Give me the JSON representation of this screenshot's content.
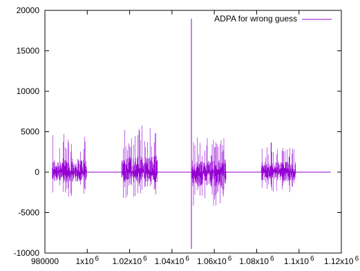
{
  "chart_data": {
    "type": "line",
    "title": "",
    "xlabel": "",
    "ylabel": "",
    "xlim": [
      980000,
      1120000
    ],
    "ylim": [
      -10000,
      20000
    ],
    "grid": false,
    "legend_position": "top-right",
    "x_ticks": [
      {
        "value": 980000,
        "base": "980000",
        "exp": ""
      },
      {
        "value": 1000000,
        "base": "1x10",
        "exp": "6"
      },
      {
        "value": 1020000,
        "base": "1.02x10",
        "exp": "6"
      },
      {
        "value": 1040000,
        "base": "1.04x10",
        "exp": "6"
      },
      {
        "value": 1060000,
        "base": "1.06x10",
        "exp": "6"
      },
      {
        "value": 1080000,
        "base": "1.08x10",
        "exp": "6"
      },
      {
        "value": 1100000,
        "base": "1.1x10",
        "exp": "6"
      },
      {
        "value": 1120000,
        "base": "1.12x10",
        "exp": "6"
      }
    ],
    "y_ticks": [
      {
        "value": -10000,
        "label": "-10000"
      },
      {
        "value": -5000,
        "label": "-5000"
      },
      {
        "value": 0,
        "label": "0"
      },
      {
        "value": 5000,
        "label": "5000"
      },
      {
        "value": 10000,
        "label": "10000"
      },
      {
        "value": 15000,
        "label": "15000"
      },
      {
        "value": 20000,
        "label": "20000"
      }
    ],
    "series": [
      {
        "name": "ADPA for wrong guess",
        "color": "#9400d3",
        "x_range": [
          983500,
          1115000
        ],
        "baseline": 0,
        "bursts": [
          {
            "x_start": 983500,
            "x_end": 999700,
            "max": 4900,
            "min": -3100
          },
          {
            "x_start": 1016300,
            "x_end": 1033200,
            "max": 5900,
            "min": -3200
          },
          {
            "x_start": 1049500,
            "x_end": 1065500,
            "max": 4500,
            "min": -4400
          },
          {
            "x_start": 1082200,
            "x_end": 1098500,
            "max": 3800,
            "min": -2600
          }
        ],
        "spike": {
          "x": 1049200,
          "max": 19000,
          "min": -9500
        }
      }
    ]
  }
}
